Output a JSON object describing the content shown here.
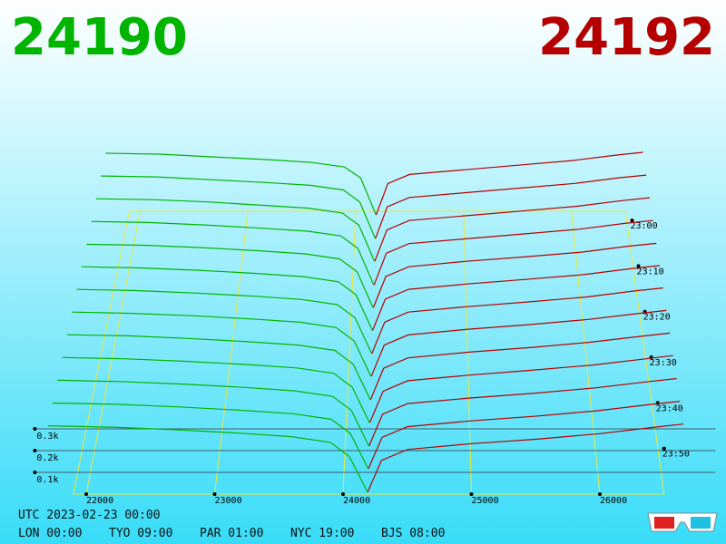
{
  "chart_data": {
    "type": "depth3d",
    "best_bid": 24190,
    "best_ask": 24192,
    "bid_color": "#00b400",
    "ask_color": "#b40000",
    "utc": "UTC 2023-02-23 00:00",
    "clocks": [
      "LON 00:00",
      "TYO 09:00",
      "PAR 01:00",
      "NYC 19:00",
      "BJS 08:00"
    ],
    "xlim": [
      21900,
      26500
    ],
    "xticks": [
      22000,
      23000,
      24000,
      25000,
      26000
    ],
    "yticks": [
      {
        "value": 100,
        "label": "0.1k"
      },
      {
        "value": 200,
        "label": "0.2k"
      },
      {
        "value": 300,
        "label": "0.3k"
      }
    ],
    "zlim": [
      -2,
      60
    ],
    "zticks": [
      {
        "value": 0,
        "label": "23:00"
      },
      {
        "value": 10,
        "label": "23:10"
      },
      {
        "value": 20,
        "label": "23:20"
      },
      {
        "value": 30,
        "label": "23:30"
      },
      {
        "value": 40,
        "label": "23:40"
      },
      {
        "value": 50,
        "label": "23:50"
      }
    ],
    "bid_prices": [
      21700,
      22200,
      22700,
      23200,
      23600,
      23900,
      24050,
      24190
    ],
    "ask_prices": [
      24192,
      24300,
      24500,
      25000,
      25500,
      26000,
      26400,
      26650
    ],
    "snapshots": [
      {
        "t": 0,
        "bids": [
          365,
          360,
          345,
          330,
          315,
          290,
          230,
          30
        ],
        "asks": [
          30,
          200,
          250,
          275,
          300,
          325,
          355,
          370
        ]
      },
      {
        "t": 5,
        "bids": [
          360,
          355,
          340,
          325,
          310,
          285,
          220,
          25
        ],
        "asks": [
          25,
          195,
          245,
          270,
          295,
          320,
          350,
          365
        ]
      },
      {
        "t": 10,
        "bids": [
          355,
          350,
          338,
          320,
          305,
          280,
          215,
          25
        ],
        "asks": [
          25,
          190,
          240,
          265,
          290,
          315,
          345,
          360
        ]
      },
      {
        "t": 15,
        "bids": [
          350,
          345,
          332,
          315,
          300,
          275,
          210,
          20
        ],
        "asks": [
          20,
          185,
          235,
          260,
          285,
          310,
          340,
          355
        ]
      },
      {
        "t": 20,
        "bids": [
          345,
          340,
          328,
          312,
          296,
          270,
          205,
          20
        ],
        "asks": [
          20,
          180,
          230,
          258,
          280,
          305,
          335,
          350
        ]
      },
      {
        "t": 25,
        "bids": [
          342,
          336,
          324,
          308,
          292,
          266,
          200,
          20
        ],
        "asks": [
          20,
          178,
          228,
          255,
          278,
          302,
          332,
          348
        ]
      },
      {
        "t": 30,
        "bids": [
          338,
          332,
          320,
          304,
          288,
          262,
          196,
          18
        ],
        "asks": [
          18,
          175,
          225,
          252,
          275,
          300,
          330,
          345
        ]
      },
      {
        "t": 35,
        "bids": [
          334,
          328,
          316,
          300,
          284,
          258,
          192,
          18
        ],
        "asks": [
          18,
          172,
          222,
          250,
          272,
          298,
          326,
          342
        ]
      },
      {
        "t": 40,
        "bids": [
          330,
          325,
          312,
          296,
          280,
          254,
          188,
          15
        ],
        "asks": [
          15,
          168,
          218,
          246,
          268,
          294,
          322,
          338
        ]
      },
      {
        "t": 45,
        "bids": [
          326,
          320,
          308,
          292,
          276,
          250,
          184,
          15
        ],
        "asks": [
          15,
          165,
          215,
          242,
          265,
          290,
          318,
          335
        ]
      },
      {
        "t": 50,
        "bids": [
          322,
          316,
          304,
          288,
          272,
          246,
          180,
          12
        ],
        "asks": [
          12,
          162,
          212,
          238,
          260,
          286,
          314,
          330
        ]
      },
      {
        "t": 55,
        "bids": [
          318,
          312,
          300,
          284,
          268,
          242,
          176,
          12
        ],
        "asks": [
          12,
          158,
          208,
          235,
          256,
          282,
          310,
          326
        ]
      },
      {
        "t": 60,
        "bids": [
          314,
          308,
          296,
          280,
          264,
          238,
          172,
          10
        ],
        "asks": [
          10,
          155,
          205,
          232,
          252,
          278,
          306,
          322
        ]
      }
    ]
  }
}
